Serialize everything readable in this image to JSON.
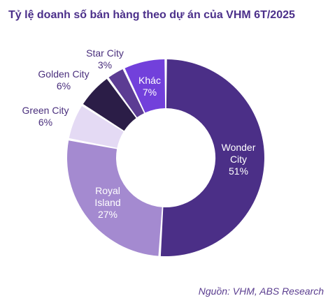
{
  "chart_data": {
    "type": "pie",
    "title": "Tỷ lệ doanh số bán hàng theo dự án của VHM 6T/2025",
    "donut": true,
    "categories": [
      "Wonder City",
      "Royal Island",
      "Green City",
      "Golden City",
      "Star City",
      "Khác"
    ],
    "values": [
      51,
      27,
      6,
      6,
      3,
      7
    ],
    "value_labels": [
      "51%",
      "27%",
      "6%",
      "6%",
      "3%",
      "7%"
    ],
    "label_lines": [
      [
        "Wonder",
        "City",
        "51%"
      ],
      [
        "Royal",
        "Island",
        "27%"
      ],
      [
        "Green City",
        "6%"
      ],
      [
        "Golden City",
        "6%"
      ],
      [
        "Star City",
        "3%"
      ],
      [
        "Khác",
        "7%"
      ]
    ],
    "colors": [
      "#4b2f87",
      "#a48ad0",
      "#e4daf4",
      "#2b1d47",
      "#5c3c93",
      "#7240db"
    ],
    "legend": "none"
  },
  "source": "Nguồn: VHM, ABS Research"
}
